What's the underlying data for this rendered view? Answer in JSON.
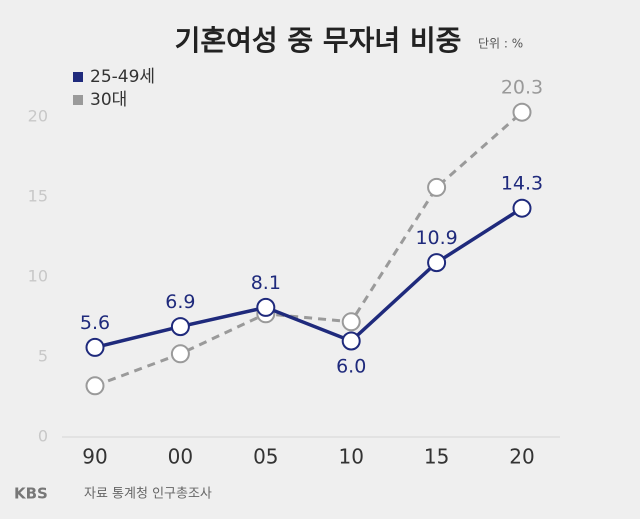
{
  "chart_data": {
    "type": "line",
    "title": "기혼여성 중 무자녀 비중",
    "unit": "단위 : %",
    "categories": [
      "90",
      "00",
      "05",
      "10",
      "15",
      "20"
    ],
    "series": [
      {
        "name": "25-49세",
        "color": "#1f2a7c",
        "dashed": false,
        "values": [
          5.6,
          6.9,
          8.1,
          6.0,
          10.9,
          14.3
        ],
        "value_labels": [
          "5.6",
          "6.9",
          "8.1",
          "6.0",
          "10.9",
          "14.3"
        ]
      },
      {
        "name": "30대",
        "color": "#9a9a9a",
        "dashed": true,
        "values": [
          3.2,
          5.2,
          7.7,
          7.2,
          15.6,
          20.3
        ],
        "value_labels": [
          null,
          null,
          null,
          null,
          null,
          "20.3"
        ]
      }
    ],
    "ylim": [
      0,
      20
    ],
    "yticks": [
      0,
      5,
      10,
      15,
      20
    ],
    "grid": false,
    "source": "자료 통계청 인구총조사",
    "logo": "KBS"
  }
}
